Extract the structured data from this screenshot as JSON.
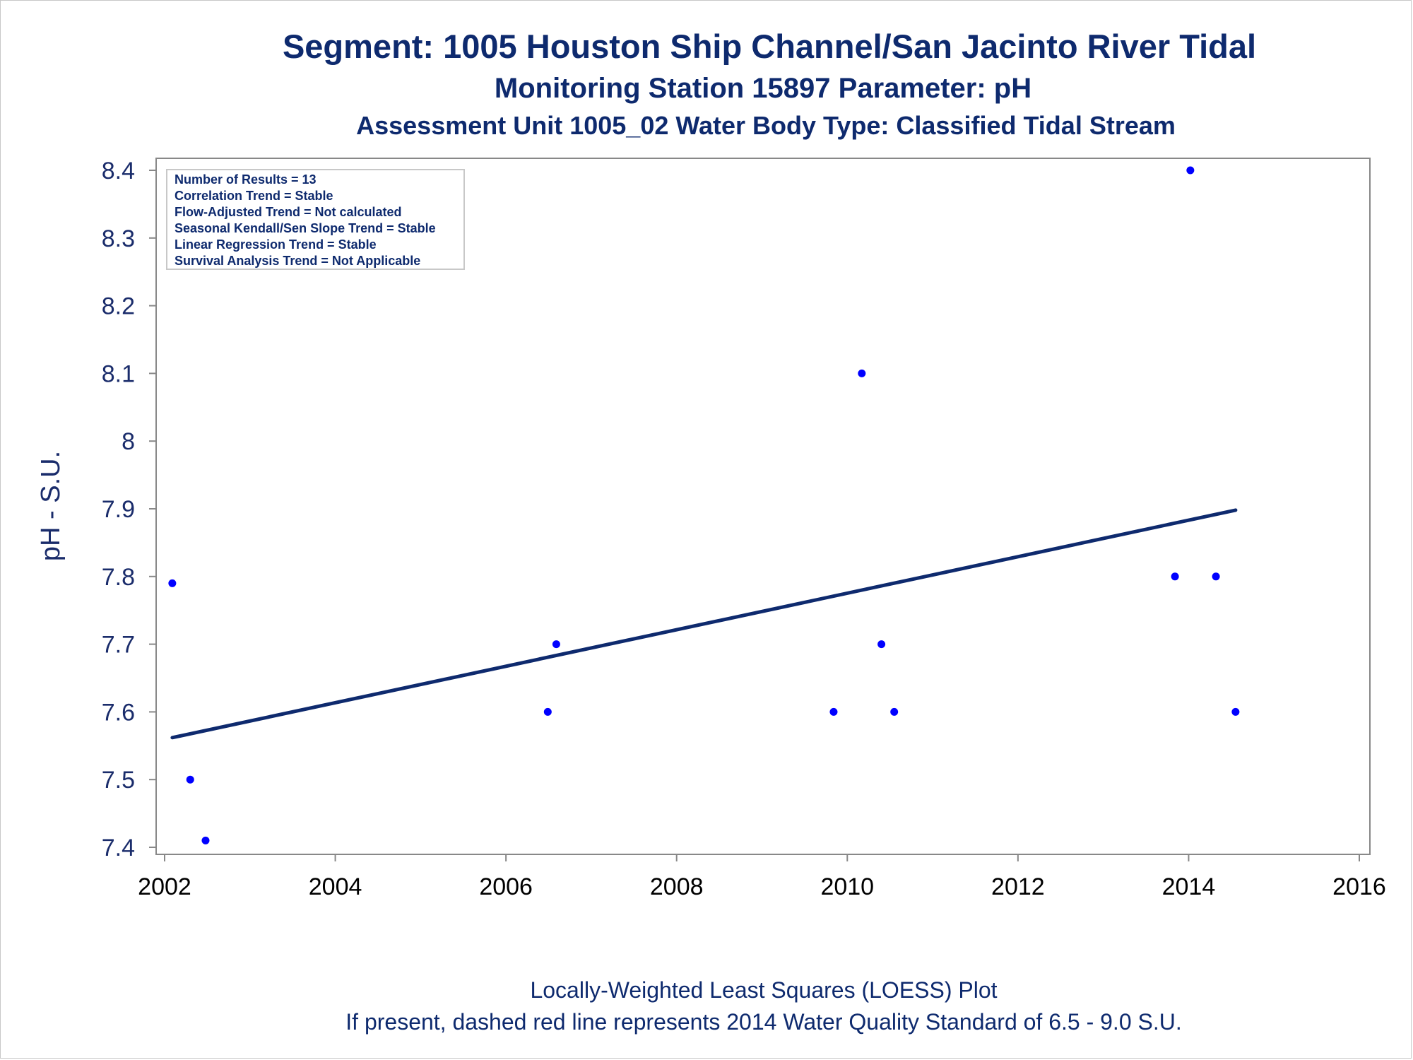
{
  "title": "Segment: 1005  Houston Ship Channel/San Jacinto River Tidal",
  "subtitle": "Monitoring Station 15897 Parameter: pH",
  "subtitle2": "Assessment Unit 1005_02   Water Body Type: Classified Tidal Stream",
  "stats_box": [
    "Number of Results = 13",
    "Correlation Trend = Stable",
    "Flow-Adjusted Trend = Not calculated",
    "Seasonal Kendall/Sen Slope Trend = Stable",
    "Linear Regression Trend = Stable",
    "Survival Analysis Trend = Not Applicable"
  ],
  "footnote1": "Locally-Weighted Least Squares (LOESS) Plot",
  "footnote2": "If present, dashed red line represents 2014 Water Quality Standard of 6.5 - 9.0 S.U.",
  "colors": {
    "text": "#0e2a6e",
    "points": "#0000ff",
    "trend_line": "#0e2a6e",
    "frame": "#888888"
  },
  "chart_data": {
    "type": "scatter",
    "title": "Segment: 1005  Houston Ship Channel/San Jacinto River Tidal",
    "xlabel": "",
    "ylabel": "pH - S.U.",
    "xlim": [
      2002,
      2016
    ],
    "ylim": [
      7.4,
      8.4
    ],
    "x_ticks": [
      2002,
      2004,
      2006,
      2008,
      2010,
      2012,
      2014,
      2016
    ],
    "x_tick_labels": [
      "2002",
      "2004",
      "2006",
      "2008",
      "2010",
      "2012",
      "2014",
      "2016"
    ],
    "y_ticks": [
      7.4,
      7.5,
      7.6,
      7.7,
      7.8,
      7.9,
      8.0,
      8.1,
      8.2,
      8.3,
      8.4
    ],
    "y_tick_labels": [
      "7.4",
      "7.5",
      "7.6",
      "7.7",
      "7.8",
      "7.9",
      "8",
      "8.1",
      "8.2",
      "8.3",
      "8.4"
    ],
    "grid": false,
    "points": [
      {
        "x": 2002.09,
        "y": 7.79
      },
      {
        "x": 2002.3,
        "y": 7.5
      },
      {
        "x": 2002.48,
        "y": 7.41
      },
      {
        "x": 2006.49,
        "y": 7.6
      },
      {
        "x": 2006.59,
        "y": 7.7
      },
      {
        "x": 2009.84,
        "y": 7.6
      },
      {
        "x": 2010.17,
        "y": 8.1
      },
      {
        "x": 2010.4,
        "y": 7.7
      },
      {
        "x": 2010.55,
        "y": 7.6
      },
      {
        "x": 2013.84,
        "y": 7.8
      },
      {
        "x": 2014.02,
        "y": 8.4
      },
      {
        "x": 2014.32,
        "y": 7.8
      },
      {
        "x": 2014.55,
        "y": 7.6
      }
    ],
    "trend_line": [
      {
        "x": 2002.09,
        "y": 7.562
      },
      {
        "x": 2014.55,
        "y": 7.898
      }
    ]
  }
}
